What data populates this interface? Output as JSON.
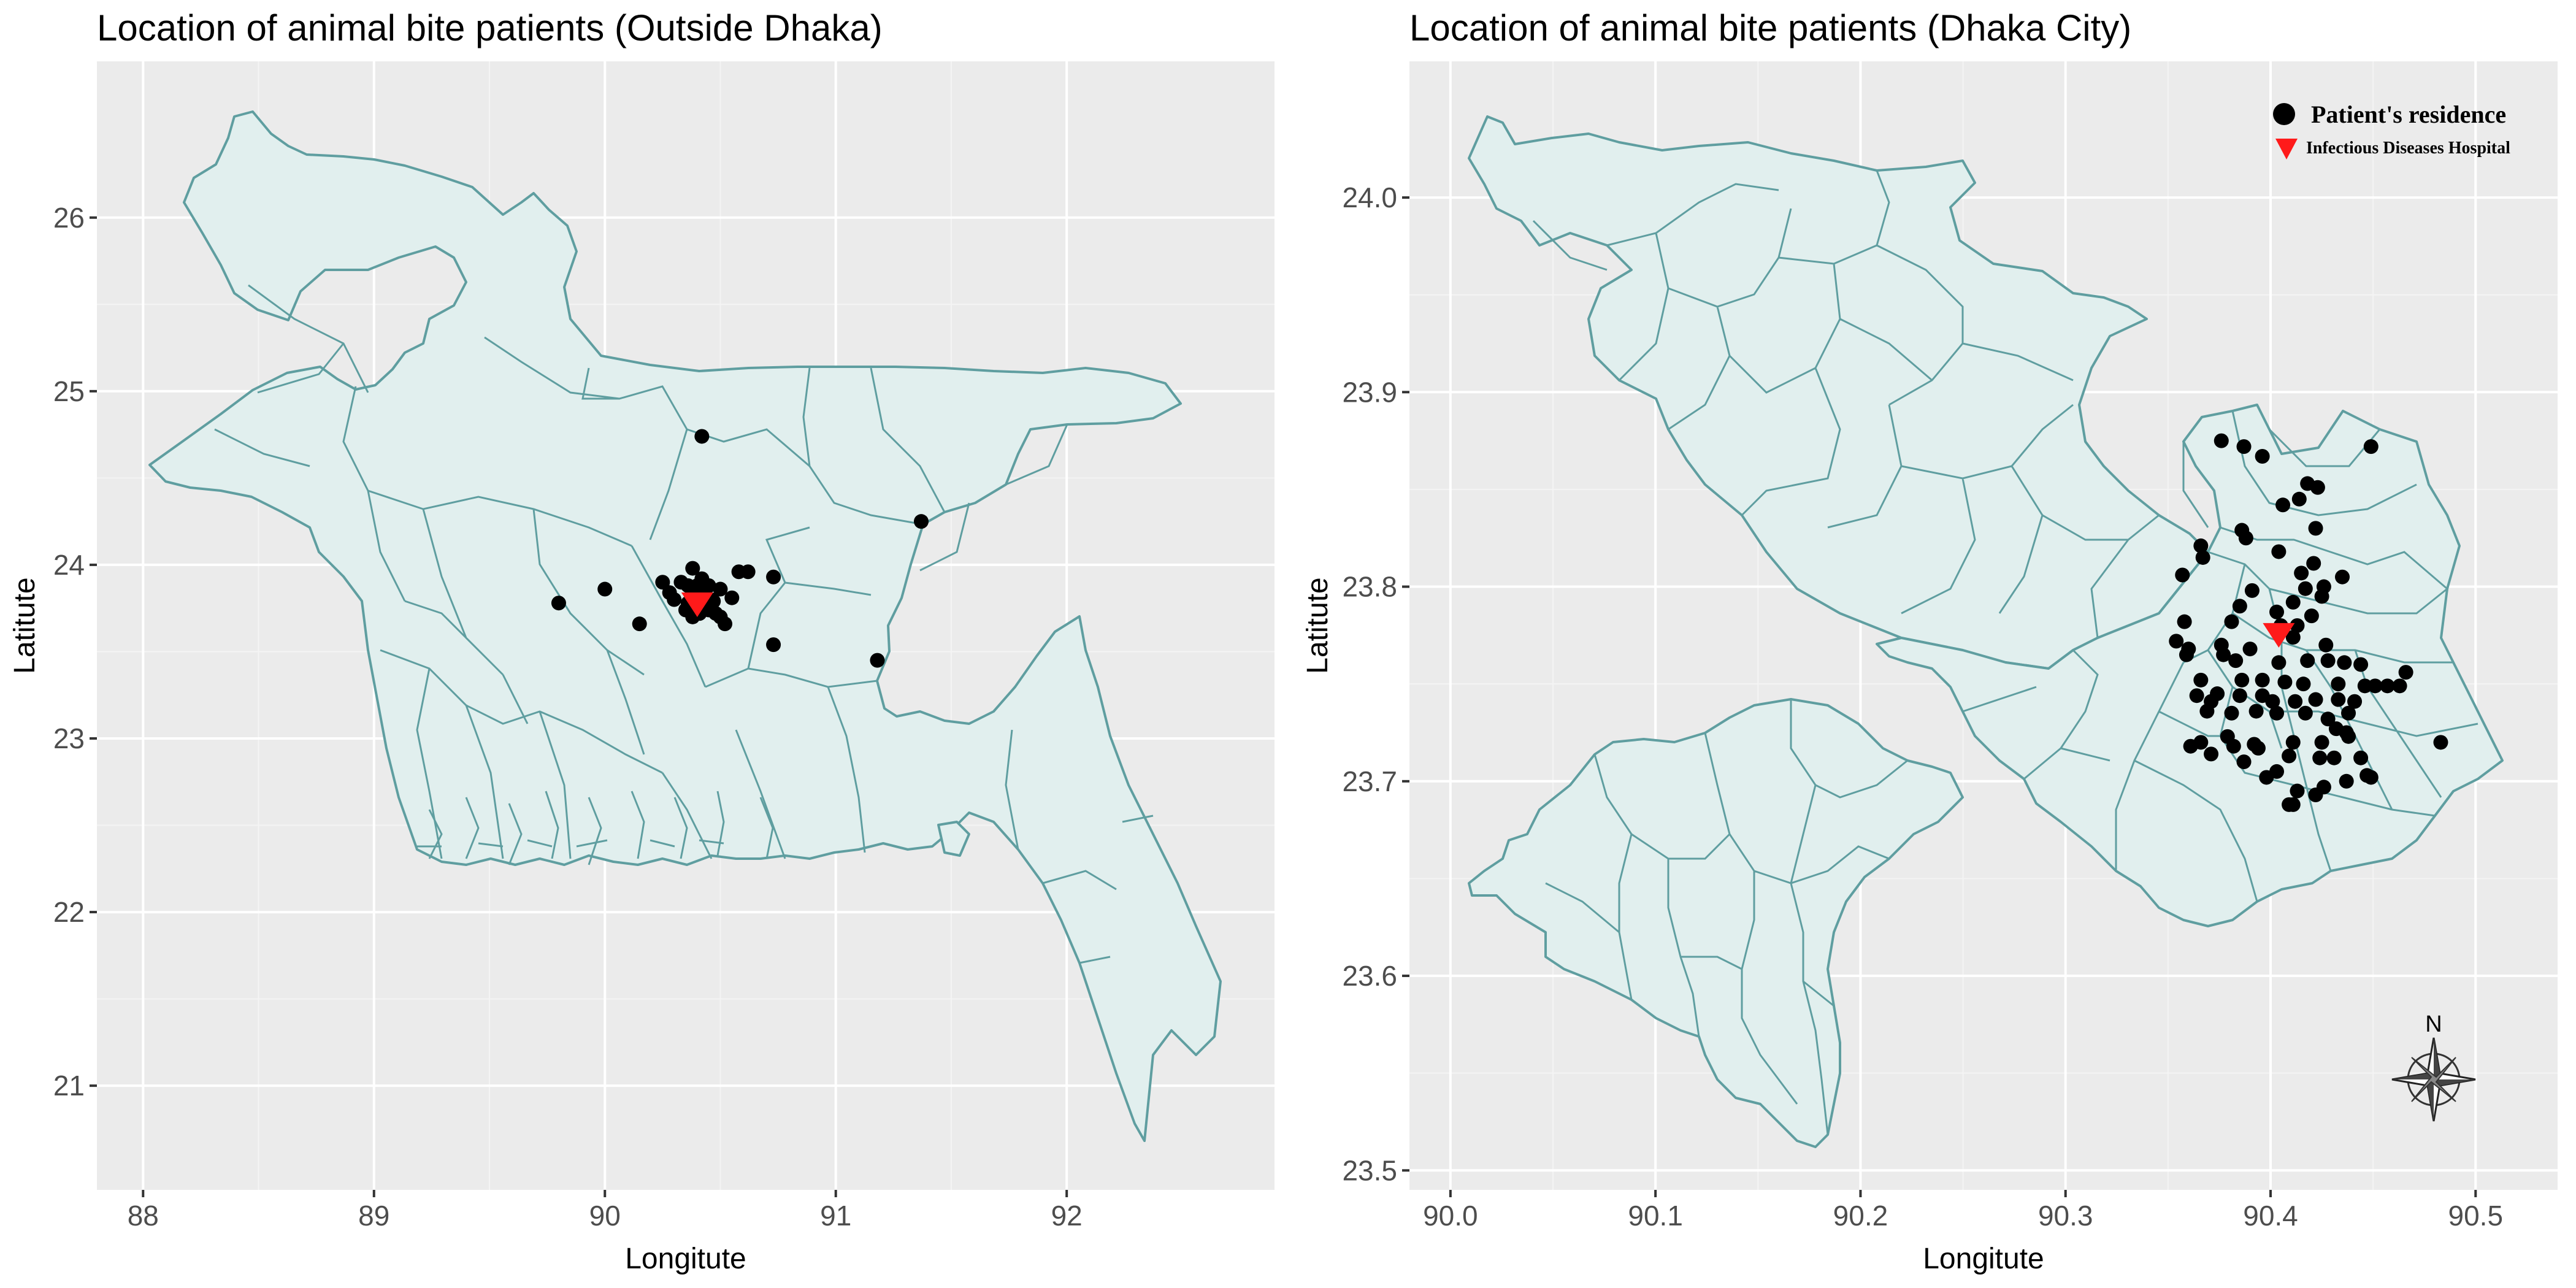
{
  "panels": [
    {
      "title": "Location of animal bite patients (Outside Dhaka)",
      "xlabel": "Longitute",
      "ylabel": "Latitute",
      "xticks": [
        "88",
        "89",
        "90",
        "91",
        "92"
      ],
      "yticks": [
        "21",
        "22",
        "23",
        "24",
        "25",
        "26"
      ]
    },
    {
      "title": "Location of animal bite patients (Dhaka City)",
      "xlabel": "Longitute",
      "ylabel": "Latitute",
      "xticks": [
        "90.0",
        "90.1",
        "90.2",
        "90.3",
        "90.4",
        "90.5"
      ],
      "yticks": [
        "23.5",
        "23.6",
        "23.7",
        "23.8",
        "23.9",
        "24.0"
      ]
    }
  ],
  "legend": {
    "patient": "Patient's residence",
    "hospital": "Infectious Diseases Hospital"
  },
  "compass_label": "N",
  "colors": {
    "panel_background": "#ebebeb",
    "land_fill": "#e1efee",
    "boundary": "#5f9ea0",
    "patient": "#000000",
    "hospital": "#ff1a1a"
  },
  "chart_data": [
    {
      "type": "scatter",
      "title": "Location of animal bite patients (Outside Dhaka)",
      "xlabel": "Longitute",
      "ylabel": "Latitute",
      "xlim": [
        87.8,
        92.9
      ],
      "ylim": [
        20.4,
        26.9
      ],
      "grid": true,
      "series": [
        {
          "name": "Patient's residence",
          "marker": "circle",
          "color": "#000000",
          "x": [
            90.42,
            91.37,
            89.8,
            90.0,
            90.15,
            90.25,
            90.28,
            90.3,
            90.33,
            90.36,
            90.38,
            90.38,
            90.4,
            90.4,
            90.41,
            90.42,
            90.43,
            90.44,
            90.45,
            90.45,
            90.46,
            90.48,
            90.5,
            90.52,
            90.55,
            90.58,
            90.62,
            90.73,
            90.73,
            91.18,
            90.35,
            90.38,
            90.42,
            90.47,
            90.4,
            90.36,
            90.43,
            90.5
          ],
          "y": [
            24.74,
            24.25,
            23.78,
            23.86,
            23.66,
            23.9,
            23.84,
            23.8,
            23.9,
            23.88,
            23.82,
            23.98,
            23.88,
            23.76,
            23.72,
            23.82,
            23.85,
            23.78,
            23.74,
            23.88,
            23.8,
            23.72,
            23.86,
            23.66,
            23.81,
            23.96,
            23.96,
            23.93,
            23.54,
            23.45,
            23.74,
            23.7,
            23.92,
            23.79,
            23.83,
            23.78,
            23.75,
            23.7
          ]
        },
        {
          "name": "Infectious Diseases Hospital",
          "marker": "triangle-down",
          "color": "#ff1a1a",
          "x": [
            90.4
          ],
          "y": [
            23.77
          ]
        }
      ]
    },
    {
      "type": "scatter",
      "title": "Location of animal bite patients (Dhaka City)",
      "xlabel": "Longitute",
      "ylabel": "Latitute",
      "xlim": [
        89.98,
        90.54
      ],
      "ylim": [
        23.49,
        24.07
      ],
      "grid": true,
      "legend_position": "top-right",
      "series": [
        {
          "name": "Patient's residence",
          "marker": "circle",
          "color": "#000000",
          "x": [
            90.376,
            90.387,
            90.396,
            90.449,
            90.418,
            90.423,
            90.414,
            90.406,
            90.422,
            90.366,
            90.386,
            90.367,
            90.388,
            90.404,
            90.421,
            90.357,
            90.415,
            90.435,
            90.426,
            90.391,
            90.417,
            90.425,
            90.411,
            90.385,
            90.42,
            90.381,
            90.403,
            90.413,
            90.358,
            90.354,
            90.36,
            90.376,
            90.39,
            90.411,
            90.427,
            90.359,
            90.377,
            90.383,
            90.404,
            90.418,
            90.428,
            90.436,
            90.444,
            90.366,
            90.386,
            90.396,
            90.407,
            90.416,
            90.433,
            90.446,
            90.457,
            90.466,
            90.374,
            90.364,
            90.371,
            90.385,
            90.396,
            90.401,
            90.412,
            90.422,
            90.433,
            90.441,
            90.451,
            90.463,
            90.369,
            90.381,
            90.393,
            90.403,
            90.417,
            90.428,
            90.438,
            90.366,
            90.379,
            90.392,
            90.411,
            90.425,
            90.438,
            90.483,
            90.382,
            90.394,
            90.409,
            90.424,
            90.431,
            90.447,
            90.361,
            90.371,
            90.387,
            90.403,
            90.413,
            90.422,
            90.411,
            90.398,
            90.437,
            90.449,
            90.409,
            90.426,
            90.432,
            90.437,
            90.444,
            90.405
          ],
          "y": [
            23.875,
            23.872,
            23.867,
            23.872,
            23.853,
            23.851,
            23.845,
            23.842,
            23.83,
            23.821,
            23.829,
            23.815,
            23.825,
            23.818,
            23.812,
            23.806,
            23.807,
            23.805,
            23.8,
            23.798,
            23.799,
            23.795,
            23.792,
            23.79,
            23.785,
            23.782,
            23.787,
            23.78,
            23.782,
            23.772,
            23.768,
            23.77,
            23.768,
            23.774,
            23.77,
            23.765,
            23.765,
            23.762,
            23.761,
            23.762,
            23.762,
            23.761,
            23.76,
            23.752,
            23.752,
            23.752,
            23.751,
            23.75,
            23.75,
            23.749,
            23.749,
            23.756,
            23.745,
            23.744,
            23.741,
            23.744,
            23.744,
            23.741,
            23.741,
            23.742,
            23.742,
            23.741,
            23.749,
            23.749,
            23.736,
            23.735,
            23.736,
            23.735,
            23.735,
            23.732,
            23.735,
            23.72,
            23.723,
            23.719,
            23.72,
            23.72,
            23.723,
            23.72,
            23.718,
            23.717,
            23.713,
            23.712,
            23.712,
            23.703,
            23.718,
            23.714,
            23.71,
            23.705,
            23.695,
            23.693,
            23.688,
            23.702,
            23.7,
            23.702,
            23.688,
            23.697,
            23.727,
            23.725,
            23.712,
            23.78
          ]
        },
        {
          "name": "Infectious Diseases Hospital",
          "marker": "triangle-down",
          "color": "#ff1a1a",
          "x": [
            90.404
          ],
          "y": [
            23.775
          ]
        }
      ]
    }
  ]
}
